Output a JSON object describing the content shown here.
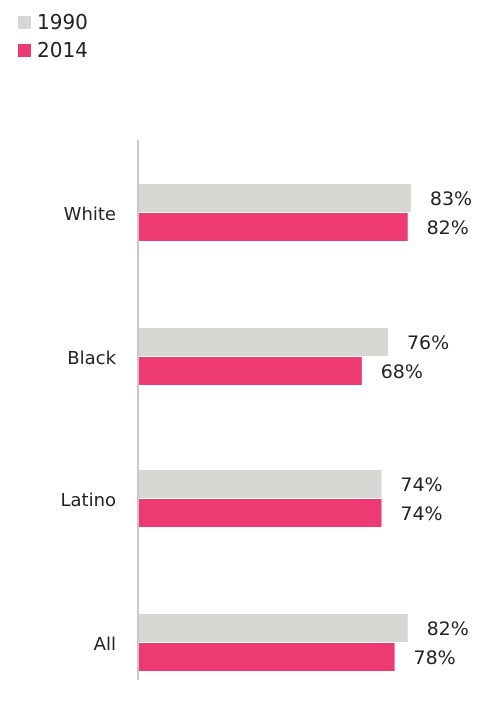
{
  "chart_data": {
    "type": "bar",
    "orientation": "horizontal",
    "categories": [
      "White",
      "Black",
      "Latino",
      "All"
    ],
    "series": [
      {
        "name": "1990",
        "color": "#d6d7d3",
        "values": [
          83,
          76,
          74,
          82
        ],
        "labels": [
          "83%",
          "76%",
          "74%",
          "82%"
        ]
      },
      {
        "name": "2014",
        "color": "#ee3a73",
        "values": [
          82,
          68,
          74,
          78
        ],
        "labels": [
          "82%",
          "68%",
          "74%",
          "78%"
        ]
      }
    ],
    "xlim": [
      0,
      100
    ],
    "grid": false,
    "legend_position": "top-left"
  }
}
